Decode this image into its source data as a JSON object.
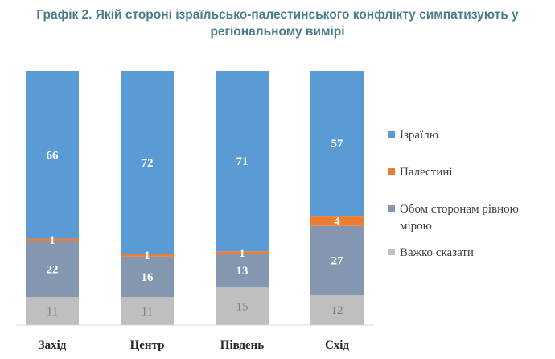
{
  "title": {
    "line1": "Графік 2. Якій стороні ізраїльсько-палестинського конфлікту симпатизують у",
    "line2": "регіональному вимірі"
  },
  "chart_data": {
    "type": "bar",
    "stacked": true,
    "categories": [
      "Захід",
      "Центр",
      "Південь",
      "Схід"
    ],
    "series": [
      {
        "name": "Важко сказати",
        "values": [
          11,
          11,
          15,
          12
        ],
        "color": "#bfbfbf"
      },
      {
        "name": "Обом сторонам рівною мірою",
        "values": [
          22,
          16,
          13,
          27
        ],
        "color": "#8496b0"
      },
      {
        "name": "Палестині",
        "values": [
          1,
          1,
          1,
          4
        ],
        "color": "#ed7d31"
      },
      {
        "name": "Ізраїлю",
        "values": [
          66,
          72,
          71,
          57
        ],
        "color": "#5b9bd5"
      }
    ],
    "legend_order": [
      "Ізраїлю",
      "Палестині",
      "Обом сторонам рівною мірою",
      "Важко сказати"
    ],
    "legend_lines": {
      "Обом сторонам рівною мірою": [
        "Обом сторонам рівною",
        "мірою"
      ]
    },
    "legend_position": "right",
    "ylim": [
      0,
      100
    ],
    "grid": false
  }
}
